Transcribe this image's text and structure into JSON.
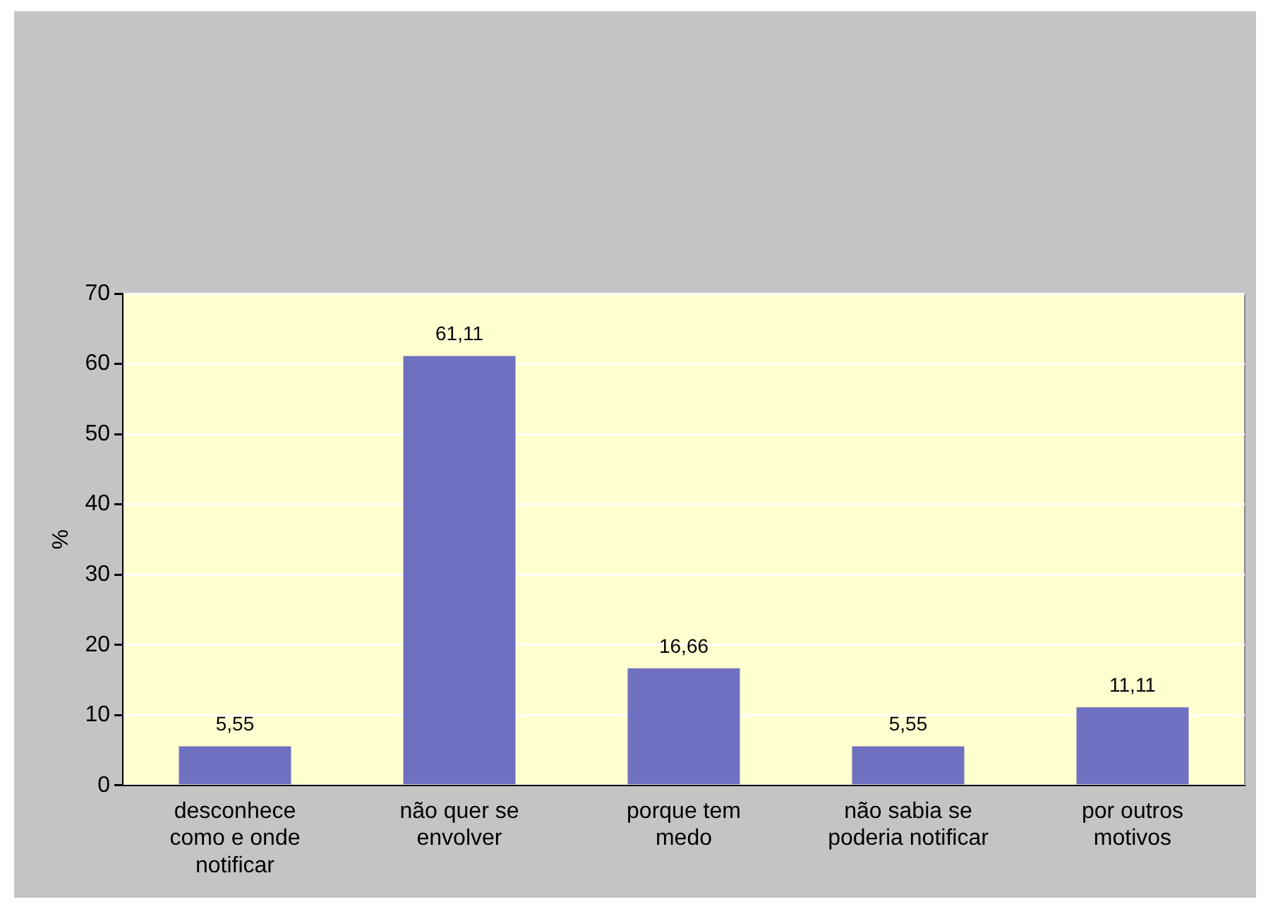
{
  "chart_data": {
    "type": "bar",
    "ylabel": "%",
    "categories": [
      "desconhece como e onde notificar",
      "não quer se envolver",
      "porque tem medo",
      "não sabia se poderia notificar",
      "por outros motivos"
    ],
    "values": [
      5.55,
      61.11,
      16.66,
      5.55,
      11.11
    ],
    "value_labels": [
      "5,55",
      "61,11",
      "16,66",
      "5,55",
      "11,11"
    ],
    "color": "#7070c0",
    "ylim": [
      0,
      70
    ],
    "yticks": [
      0,
      10,
      20,
      30,
      40,
      50,
      60,
      70
    ],
    "grid": "y",
    "legend": false
  }
}
